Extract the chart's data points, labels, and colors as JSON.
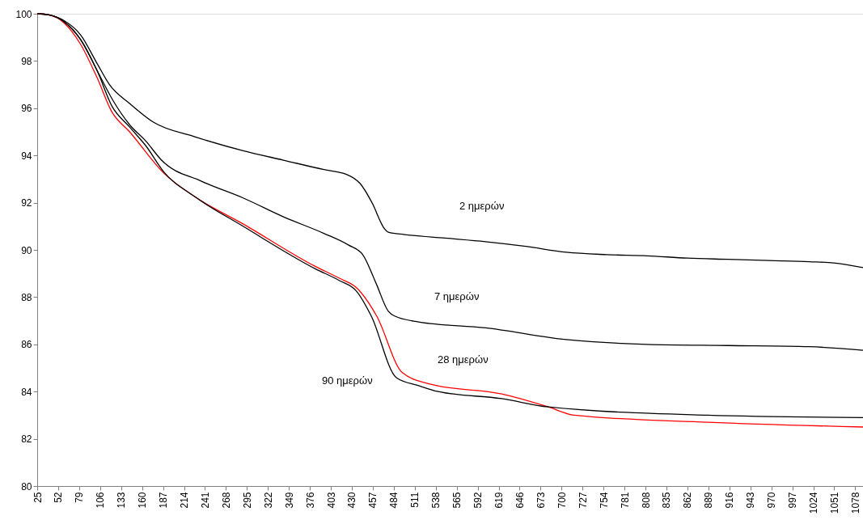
{
  "chart_data": {
    "type": "line",
    "xlim": [
      25,
      1088
    ],
    "ylim": [
      80,
      100
    ],
    "xticks": [
      25,
      52,
      79,
      106,
      133,
      160,
      187,
      214,
      241,
      268,
      295,
      322,
      349,
      376,
      403,
      430,
      457,
      484,
      511,
      538,
      565,
      592,
      619,
      646,
      673,
      700,
      727,
      754,
      781,
      808,
      835,
      862,
      889,
      916,
      943,
      970,
      997,
      1024,
      1051,
      1078
    ],
    "yticks": [
      80,
      82,
      84,
      86,
      88,
      90,
      92,
      94,
      96,
      98,
      100
    ],
    "grid": false,
    "marker": "none",
    "line_style": "solid",
    "series": [
      {
        "color": "#000000",
        "x": [
          25,
          40,
          60,
          81,
          102,
          118,
          144,
          175,
          227,
          290,
          342,
          394,
          423,
          441,
          456,
          472,
          477,
          498,
          550,
          602,
          654,
          706,
          758,
          810,
          862,
          914,
          967,
          1019,
          1050,
          1088
        ],
        "values": [
          100,
          99.95,
          99.7,
          99.1,
          97.9,
          97.0,
          96.2,
          95.4,
          94.8,
          94.2,
          93.8,
          93.4,
          93.2,
          92.8,
          92.0,
          90.9,
          90.75,
          90.65,
          90.5,
          90.35,
          90.15,
          89.9,
          89.8,
          89.75,
          89.65,
          89.6,
          89.55,
          89.5,
          89.45,
          89.25
        ]
      },
      {
        "color": "#000000",
        "x": [
          25,
          40,
          60,
          81,
          102,
          123,
          144,
          165,
          185,
          237,
          290,
          342,
          394,
          426,
          444,
          461,
          477,
          485,
          516,
          602,
          706,
          810,
          914,
          1019,
          1088
        ],
        "values": [
          100,
          99.95,
          99.65,
          98.9,
          97.6,
          96.3,
          95.3,
          94.6,
          93.8,
          92.9,
          92.2,
          91.4,
          90.7,
          90.2,
          89.8,
          88.6,
          87.4,
          87.2,
          86.95,
          86.7,
          86.2,
          86.0,
          85.95,
          85.9,
          85.75
        ]
      },
      {
        "color": "#ff0000",
        "x": [
          25,
          40,
          60,
          81,
          102,
          121,
          144,
          188,
          228,
          290,
          383,
          414,
          436,
          462,
          495,
          533,
          623,
          683,
          716,
          888,
          1088
        ],
        "values": [
          100,
          99.95,
          99.6,
          98.7,
          97.3,
          95.85,
          95.0,
          93.25,
          92.25,
          91.1,
          89.3,
          88.8,
          88.4,
          87.2,
          84.8,
          84.3,
          83.9,
          83.35,
          83.0,
          82.7,
          82.5
        ]
      },
      {
        "color": "#000000",
        "x": [
          25,
          40,
          60,
          81,
          102,
          121,
          144,
          165,
          188,
          228,
          290,
          383,
          414,
          436,
          455,
          487,
          516,
          541,
          623,
          683,
          888,
          1088
        ],
        "values": [
          100,
          99.95,
          99.65,
          98.9,
          97.6,
          96.1,
          95.2,
          94.4,
          93.3,
          92.25,
          91.0,
          89.2,
          88.7,
          88.25,
          87.2,
          84.6,
          84.25,
          84.0,
          83.7,
          83.35,
          83.0,
          82.9
        ]
      }
    ],
    "annotations": [
      "2 ημερών",
      "7 ημερών",
      "28 ημερών",
      "90 ημερών"
    ]
  }
}
